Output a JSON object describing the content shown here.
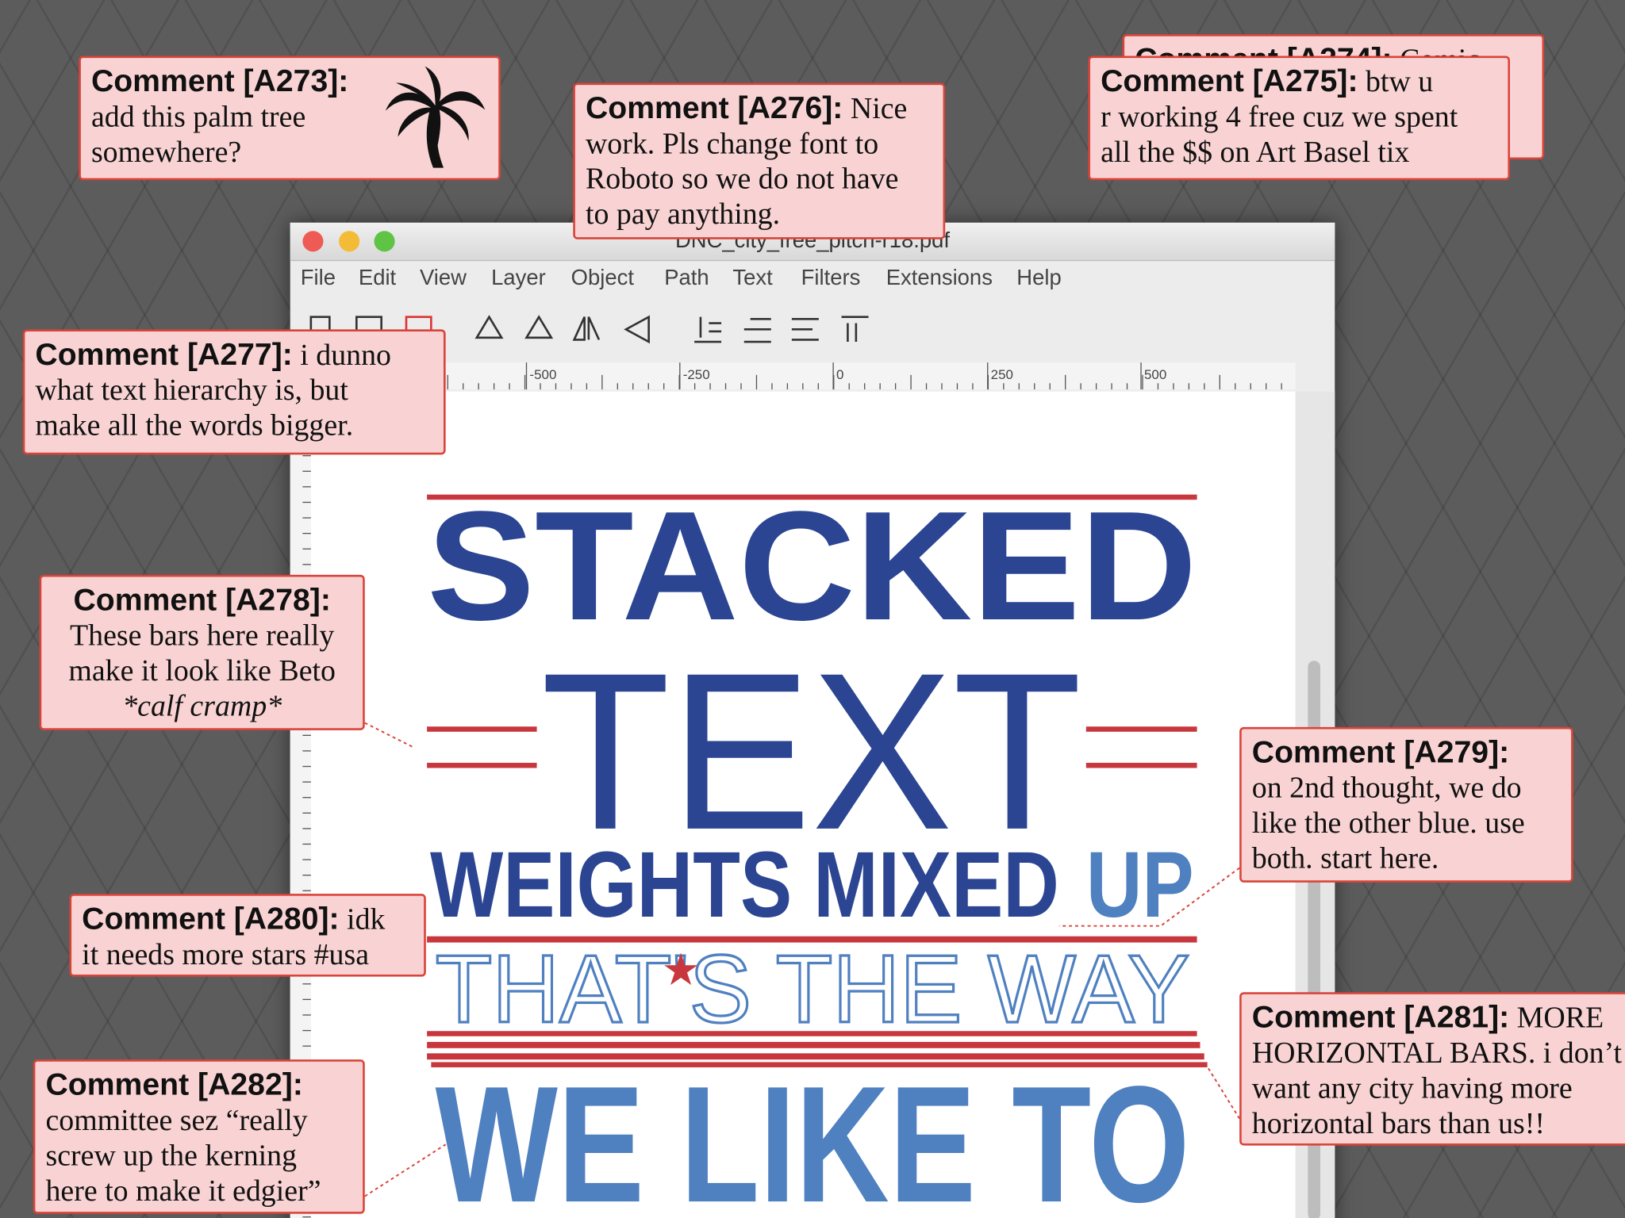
{
  "window": {
    "title": "DNC_city_free_pitch-r18.pdf",
    "menu": [
      "File",
      "Edit",
      "View",
      "Layer",
      "Object",
      "Path",
      "Text",
      "Filters",
      "Extensions",
      "Help"
    ],
    "ruler": [
      "-500",
      "-250",
      "0",
      "250",
      "500"
    ]
  },
  "poster": {
    "line1": "STACKED",
    "line2": "TEXT",
    "line3a": "WEIGHTS MIXED",
    "line3b": "UP",
    "line4": "THAT'S THE WAY",
    "line5": "WE LIKE TO"
  },
  "comments": [
    {
      "label": "Comment [A273]:",
      "lines": [
        "add this palm tree",
        "somewhere?"
      ]
    },
    {
      "label": "Comment [A276]:",
      "lead": "Nice",
      "lines": [
        "work. Pls change font to",
        "Roboto so we do not have",
        "to pay anything."
      ]
    },
    {
      "label": "Comment [A274]:",
      "lead": "Comic",
      "lines": []
    },
    {
      "label": "Comment [A275]:",
      "lead": "btw u",
      "lines": [
        "r working 4 free cuz we spent",
        "all the $$ on Art Basel tix"
      ]
    },
    {
      "label": "Comment [A277]:",
      "lead": "i dunno",
      "lines": [
        "what text hierarchy is, but",
        "make all the words bigger."
      ]
    },
    {
      "label": "Comment [A278]:",
      "lines": [
        "These bars here really",
        "make it look like Beto",
        "*calf cramp*"
      ]
    },
    {
      "label": "Comment [A279]:",
      "lines": [
        "on 2nd thought, we do",
        "like the other blue. use",
        "both. start here."
      ]
    },
    {
      "label": "Comment [A280]:",
      "lead": "idk",
      "lines": [
        "it needs more stars #usa"
      ]
    },
    {
      "label": "Comment [A281]:",
      "lead": "MORE",
      "lines": [
        "HORIZONTAL BARS. i don’t",
        "want any city having more",
        "horizontal bars than us!!"
      ]
    },
    {
      "label": "Comment [A282]:",
      "lines": [
        "committee sez “really",
        "screw up the kerning",
        "here to make it edgier”"
      ]
    }
  ]
}
